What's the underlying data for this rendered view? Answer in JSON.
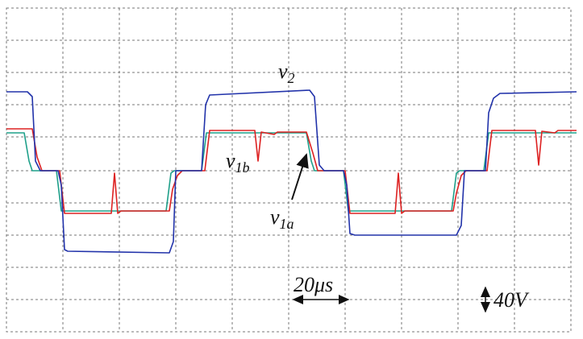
{
  "labels": [
    {
      "main": "v",
      "sub": "2"
    },
    {
      "main": "v",
      "sub": "1b"
    },
    {
      "main": "v",
      "sub": "1a"
    }
  ],
  "scale": {
    "time": "20μs",
    "voltage": "40V"
  }
}
